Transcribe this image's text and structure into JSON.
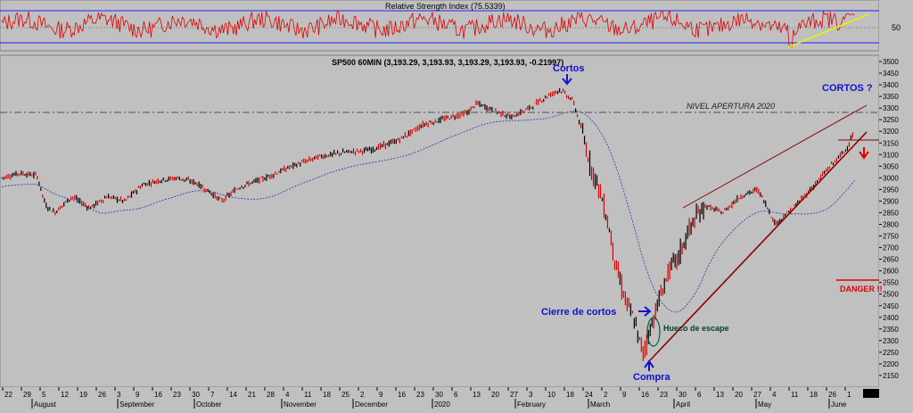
{
  "rsi_panel": {
    "title": "Relative Strength Index (75.5339)",
    "level_label": "50",
    "upper": 70,
    "lower": 30
  },
  "price_panel": {
    "title": "SP500 60MIN (3,193.29, 3,193.93, 3,193.29, 3,193.93, -0.21997)"
  },
  "annotations": {
    "cortos": "Cortos",
    "cortos_q": "CORTOS ?",
    "nivel": "NIVEL APERTURA 2020",
    "cierre": "Cierre de cortos",
    "hueco": "Hueco de escape",
    "compra": "Compra",
    "danger": "DANGER !!"
  },
  "chart_data": {
    "type": "line",
    "title": "SP500 60MIN (3,193.29, 3,193.93, 3,193.29, 3,193.93, -0.21997)",
    "ylim": [
      2100,
      3500
    ],
    "y_ticks": [
      2150,
      2200,
      2250,
      2300,
      2350,
      2400,
      2450,
      2500,
      2550,
      2600,
      2650,
      2700,
      2750,
      2800,
      2850,
      2900,
      2950,
      3000,
      3050,
      3100,
      3150,
      3200,
      3250,
      3300,
      3350,
      3400,
      3450,
      3500
    ],
    "day_ticks": [
      "22",
      "29",
      "5",
      "12",
      "19",
      "26",
      "3",
      "9",
      "16",
      "23",
      "30",
      "7",
      "14",
      "21",
      "28",
      "4",
      "11",
      "18",
      "25",
      "2",
      "9",
      "16",
      "23",
      "30",
      "6",
      "13",
      "20",
      "27",
      "3",
      "10",
      "18",
      "24",
      "2",
      "9",
      "16",
      "23",
      "30",
      "6",
      "13",
      "20",
      "27",
      "4",
      "11",
      "18",
      "26",
      "1"
    ],
    "month_labels": [
      "August",
      "September",
      "October",
      "November",
      "December",
      "2020",
      "February",
      "March",
      "April",
      "May",
      "June"
    ],
    "price_path": [
      [
        0,
        3000
      ],
      [
        0.02,
        3020
      ],
      [
        0.04,
        3010
      ],
      [
        0.05,
        2880
      ],
      [
        0.06,
        2850
      ],
      [
        0.08,
        2920
      ],
      [
        0.1,
        2870
      ],
      [
        0.12,
        2920
      ],
      [
        0.14,
        2900
      ],
      [
        0.16,
        2970
      ],
      [
        0.18,
        2990
      ],
      [
        0.2,
        3000
      ],
      [
        0.22,
        2980
      ],
      [
        0.24,
        2930
      ],
      [
        0.25,
        2900
      ],
      [
        0.27,
        2960
      ],
      [
        0.3,
        3000
      ],
      [
        0.33,
        3050
      ],
      [
        0.36,
        3090
      ],
      [
        0.39,
        3110
      ],
      [
        0.42,
        3120
      ],
      [
        0.45,
        3160
      ],
      [
        0.48,
        3230
      ],
      [
        0.51,
        3260
      ],
      [
        0.53,
        3280
      ],
      [
        0.54,
        3320
      ],
      [
        0.56,
        3290
      ],
      [
        0.58,
        3260
      ],
      [
        0.6,
        3300
      ],
      [
        0.62,
        3350
      ],
      [
        0.635,
        3380
      ],
      [
        0.65,
        3330
      ],
      [
        0.66,
        3200
      ],
      [
        0.67,
        3050
      ],
      [
        0.68,
        2950
      ],
      [
        0.69,
        2800
      ],
      [
        0.7,
        2600
      ],
      [
        0.71,
        2470
      ],
      [
        0.72,
        2380
      ],
      [
        0.725,
        2300
      ],
      [
        0.73,
        2250
      ],
      [
        0.74,
        2380
      ],
      [
        0.75,
        2500
      ],
      [
        0.76,
        2610
      ],
      [
        0.77,
        2660
      ],
      [
        0.78,
        2760
      ],
      [
        0.79,
        2830
      ],
      [
        0.8,
        2880
      ],
      [
        0.82,
        2850
      ],
      [
        0.84,
        2920
      ],
      [
        0.86,
        2950
      ],
      [
        0.87,
        2880
      ],
      [
        0.88,
        2800
      ],
      [
        0.9,
        2870
      ],
      [
        0.92,
        2950
      ],
      [
        0.94,
        3040
      ],
      [
        0.95,
        3080
      ],
      [
        0.96,
        3120
      ],
      [
        0.97,
        3200
      ]
    ],
    "rsi_level": 75.5339
  }
}
